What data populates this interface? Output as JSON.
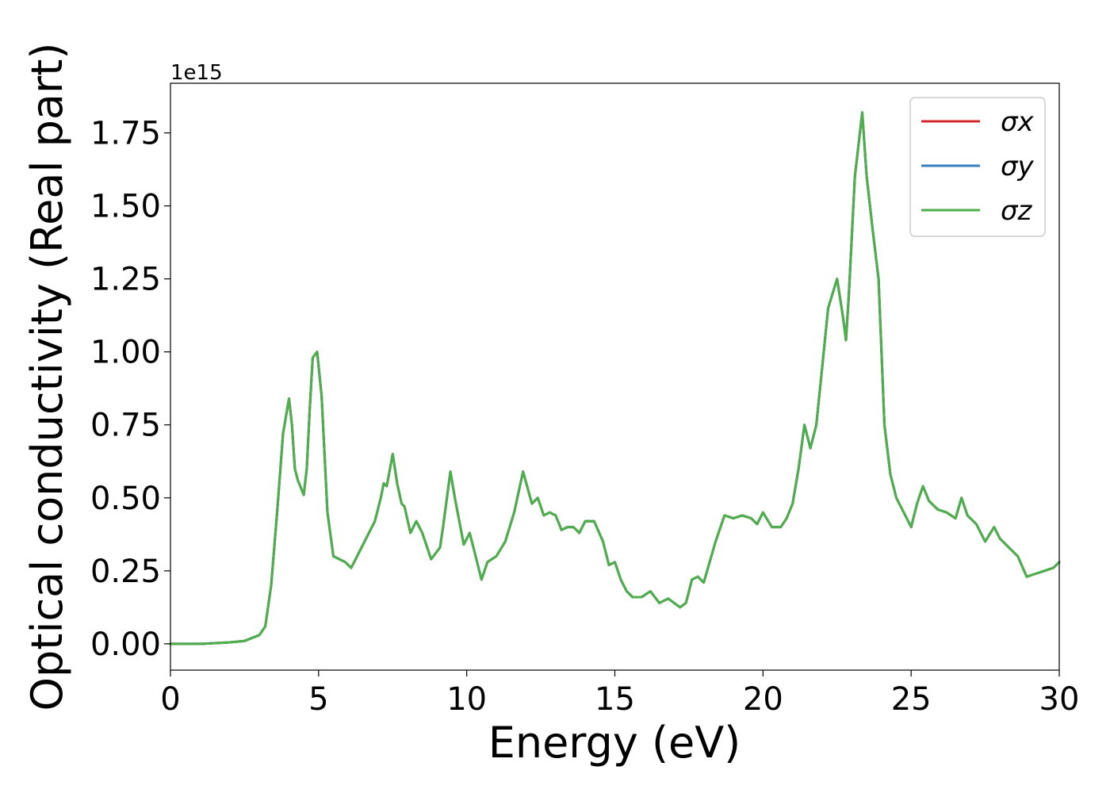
{
  "chart_data": {
    "type": "line",
    "xlabel": "Energy (eV)",
    "ylabel": "Optical conductivity (Real part)",
    "y_multiplier_label": "1e15",
    "xlim": [
      0,
      30
    ],
    "ylim": [
      -0.09,
      1.92
    ],
    "x_ticks": [
      0,
      5,
      10,
      15,
      20,
      25,
      30
    ],
    "x_tick_labels": [
      "0",
      "5",
      "10",
      "15",
      "20",
      "25",
      "30"
    ],
    "y_ticks": [
      0,
      0.25,
      0.5,
      0.75,
      1.0,
      1.25,
      1.5,
      1.75
    ],
    "y_tick_labels": [
      "0.00",
      "0.25",
      "0.50",
      "0.75",
      "1.00",
      "1.25",
      "1.50",
      "1.75"
    ],
    "grid": false,
    "legend_position": "top-right",
    "x": [
      0,
      1,
      2,
      2.5,
      3,
      3.2,
      3.4,
      3.6,
      3.8,
      4.0,
      4.1,
      4.2,
      4.3,
      4.5,
      4.6,
      4.7,
      4.8,
      4.95,
      5.1,
      5.3,
      5.5,
      5.7,
      5.9,
      6.1,
      6.3,
      6.6,
      6.9,
      7.1,
      7.2,
      7.3,
      7.5,
      7.65,
      7.8,
      7.9,
      8.1,
      8.3,
      8.5,
      8.8,
      9.1,
      9.2,
      9.45,
      9.6,
      9.9,
      10.1,
      10.3,
      10.5,
      10.7,
      11.0,
      11.3,
      11.6,
      11.9,
      12.2,
      12.4,
      12.6,
      12.8,
      13.0,
      13.2,
      13.4,
      13.6,
      13.8,
      14.0,
      14.3,
      14.6,
      14.8,
      15.0,
      15.2,
      15.4,
      15.6,
      15.9,
      16.2,
      16.5,
      16.8,
      17.0,
      17.2,
      17.4,
      17.6,
      17.8,
      18.0,
      18.4,
      18.7,
      19.0,
      19.3,
      19.6,
      19.8,
      20.0,
      20.3,
      20.6,
      20.8,
      21.0,
      21.2,
      21.4,
      21.6,
      21.8,
      22.0,
      22.2,
      22.5,
      22.7,
      22.8,
      22.9,
      23.1,
      23.35,
      23.5,
      23.7,
      23.9,
      24.1,
      24.3,
      24.5,
      24.7,
      25.0,
      25.2,
      25.4,
      25.6,
      25.9,
      26.2,
      26.5,
      26.7,
      26.9,
      27.2,
      27.5,
      27.8,
      28.0,
      28.3,
      28.6,
      28.9,
      29.2,
      29.5,
      29.8,
      30.0
    ],
    "series": [
      {
        "name": "σx",
        "color": "#d62728",
        "values": [
          0.0,
          0.0,
          0.005,
          0.01,
          0.03,
          0.06,
          0.2,
          0.45,
          0.72,
          0.84,
          0.75,
          0.6,
          0.56,
          0.51,
          0.6,
          0.8,
          0.98,
          1.0,
          0.85,
          0.45,
          0.3,
          0.29,
          0.28,
          0.26,
          0.3,
          0.36,
          0.42,
          0.5,
          0.55,
          0.54,
          0.65,
          0.55,
          0.48,
          0.47,
          0.38,
          0.42,
          0.38,
          0.29,
          0.33,
          0.4,
          0.59,
          0.5,
          0.34,
          0.38,
          0.3,
          0.22,
          0.28,
          0.3,
          0.35,
          0.45,
          0.59,
          0.48,
          0.5,
          0.44,
          0.45,
          0.44,
          0.39,
          0.4,
          0.4,
          0.38,
          0.42,
          0.42,
          0.35,
          0.27,
          0.28,
          0.22,
          0.18,
          0.16,
          0.16,
          0.18,
          0.14,
          0.155,
          0.14,
          0.125,
          0.14,
          0.22,
          0.23,
          0.21,
          0.35,
          0.44,
          0.43,
          0.44,
          0.43,
          0.41,
          0.45,
          0.4,
          0.4,
          0.43,
          0.48,
          0.6,
          0.75,
          0.67,
          0.75,
          0.95,
          1.15,
          1.25,
          1.12,
          1.04,
          1.2,
          1.6,
          1.82,
          1.6,
          1.42,
          1.25,
          0.75,
          0.58,
          0.5,
          0.46,
          0.4,
          0.48,
          0.54,
          0.49,
          0.46,
          0.45,
          0.43,
          0.5,
          0.44,
          0.41,
          0.35,
          0.4,
          0.36,
          0.33,
          0.3,
          0.23,
          0.24,
          0.25,
          0.26,
          0.28
        ]
      },
      {
        "name": "σy",
        "color": "#3a7dbf",
        "values": [
          0.0,
          0.0,
          0.005,
          0.01,
          0.03,
          0.06,
          0.2,
          0.45,
          0.72,
          0.84,
          0.75,
          0.6,
          0.56,
          0.51,
          0.6,
          0.8,
          0.98,
          1.0,
          0.85,
          0.45,
          0.3,
          0.29,
          0.28,
          0.26,
          0.3,
          0.36,
          0.42,
          0.5,
          0.55,
          0.54,
          0.65,
          0.55,
          0.48,
          0.47,
          0.38,
          0.42,
          0.38,
          0.29,
          0.33,
          0.4,
          0.59,
          0.5,
          0.34,
          0.38,
          0.3,
          0.22,
          0.28,
          0.3,
          0.35,
          0.45,
          0.59,
          0.48,
          0.5,
          0.44,
          0.45,
          0.44,
          0.39,
          0.4,
          0.4,
          0.38,
          0.42,
          0.42,
          0.35,
          0.27,
          0.28,
          0.22,
          0.18,
          0.16,
          0.16,
          0.18,
          0.14,
          0.155,
          0.14,
          0.125,
          0.14,
          0.22,
          0.23,
          0.21,
          0.35,
          0.44,
          0.43,
          0.44,
          0.43,
          0.41,
          0.45,
          0.4,
          0.4,
          0.43,
          0.48,
          0.6,
          0.75,
          0.67,
          0.75,
          0.95,
          1.15,
          1.25,
          1.12,
          1.04,
          1.2,
          1.6,
          1.82,
          1.6,
          1.42,
          1.25,
          0.75,
          0.58,
          0.5,
          0.46,
          0.4,
          0.48,
          0.54,
          0.49,
          0.46,
          0.45,
          0.43,
          0.5,
          0.44,
          0.41,
          0.35,
          0.4,
          0.36,
          0.33,
          0.3,
          0.23,
          0.24,
          0.25,
          0.26,
          0.28
        ]
      },
      {
        "name": "σz",
        "color": "#4daf4a",
        "values": [
          0.0,
          0.0,
          0.005,
          0.01,
          0.03,
          0.06,
          0.2,
          0.45,
          0.72,
          0.84,
          0.75,
          0.6,
          0.56,
          0.51,
          0.6,
          0.8,
          0.98,
          1.0,
          0.85,
          0.45,
          0.3,
          0.29,
          0.28,
          0.26,
          0.3,
          0.36,
          0.42,
          0.5,
          0.55,
          0.54,
          0.65,
          0.55,
          0.48,
          0.47,
          0.38,
          0.42,
          0.38,
          0.29,
          0.33,
          0.4,
          0.59,
          0.5,
          0.34,
          0.38,
          0.3,
          0.22,
          0.28,
          0.3,
          0.35,
          0.45,
          0.59,
          0.48,
          0.5,
          0.44,
          0.45,
          0.44,
          0.39,
          0.4,
          0.4,
          0.38,
          0.42,
          0.42,
          0.35,
          0.27,
          0.28,
          0.22,
          0.18,
          0.16,
          0.16,
          0.18,
          0.14,
          0.155,
          0.14,
          0.125,
          0.14,
          0.22,
          0.23,
          0.21,
          0.35,
          0.44,
          0.43,
          0.44,
          0.43,
          0.41,
          0.45,
          0.4,
          0.4,
          0.43,
          0.48,
          0.6,
          0.75,
          0.67,
          0.75,
          0.95,
          1.15,
          1.25,
          1.12,
          1.04,
          1.2,
          1.6,
          1.82,
          1.6,
          1.42,
          1.25,
          0.75,
          0.58,
          0.5,
          0.46,
          0.4,
          0.48,
          0.54,
          0.49,
          0.46,
          0.45,
          0.43,
          0.5,
          0.44,
          0.41,
          0.35,
          0.4,
          0.36,
          0.33,
          0.3,
          0.23,
          0.24,
          0.25,
          0.26,
          0.28
        ]
      }
    ]
  }
}
